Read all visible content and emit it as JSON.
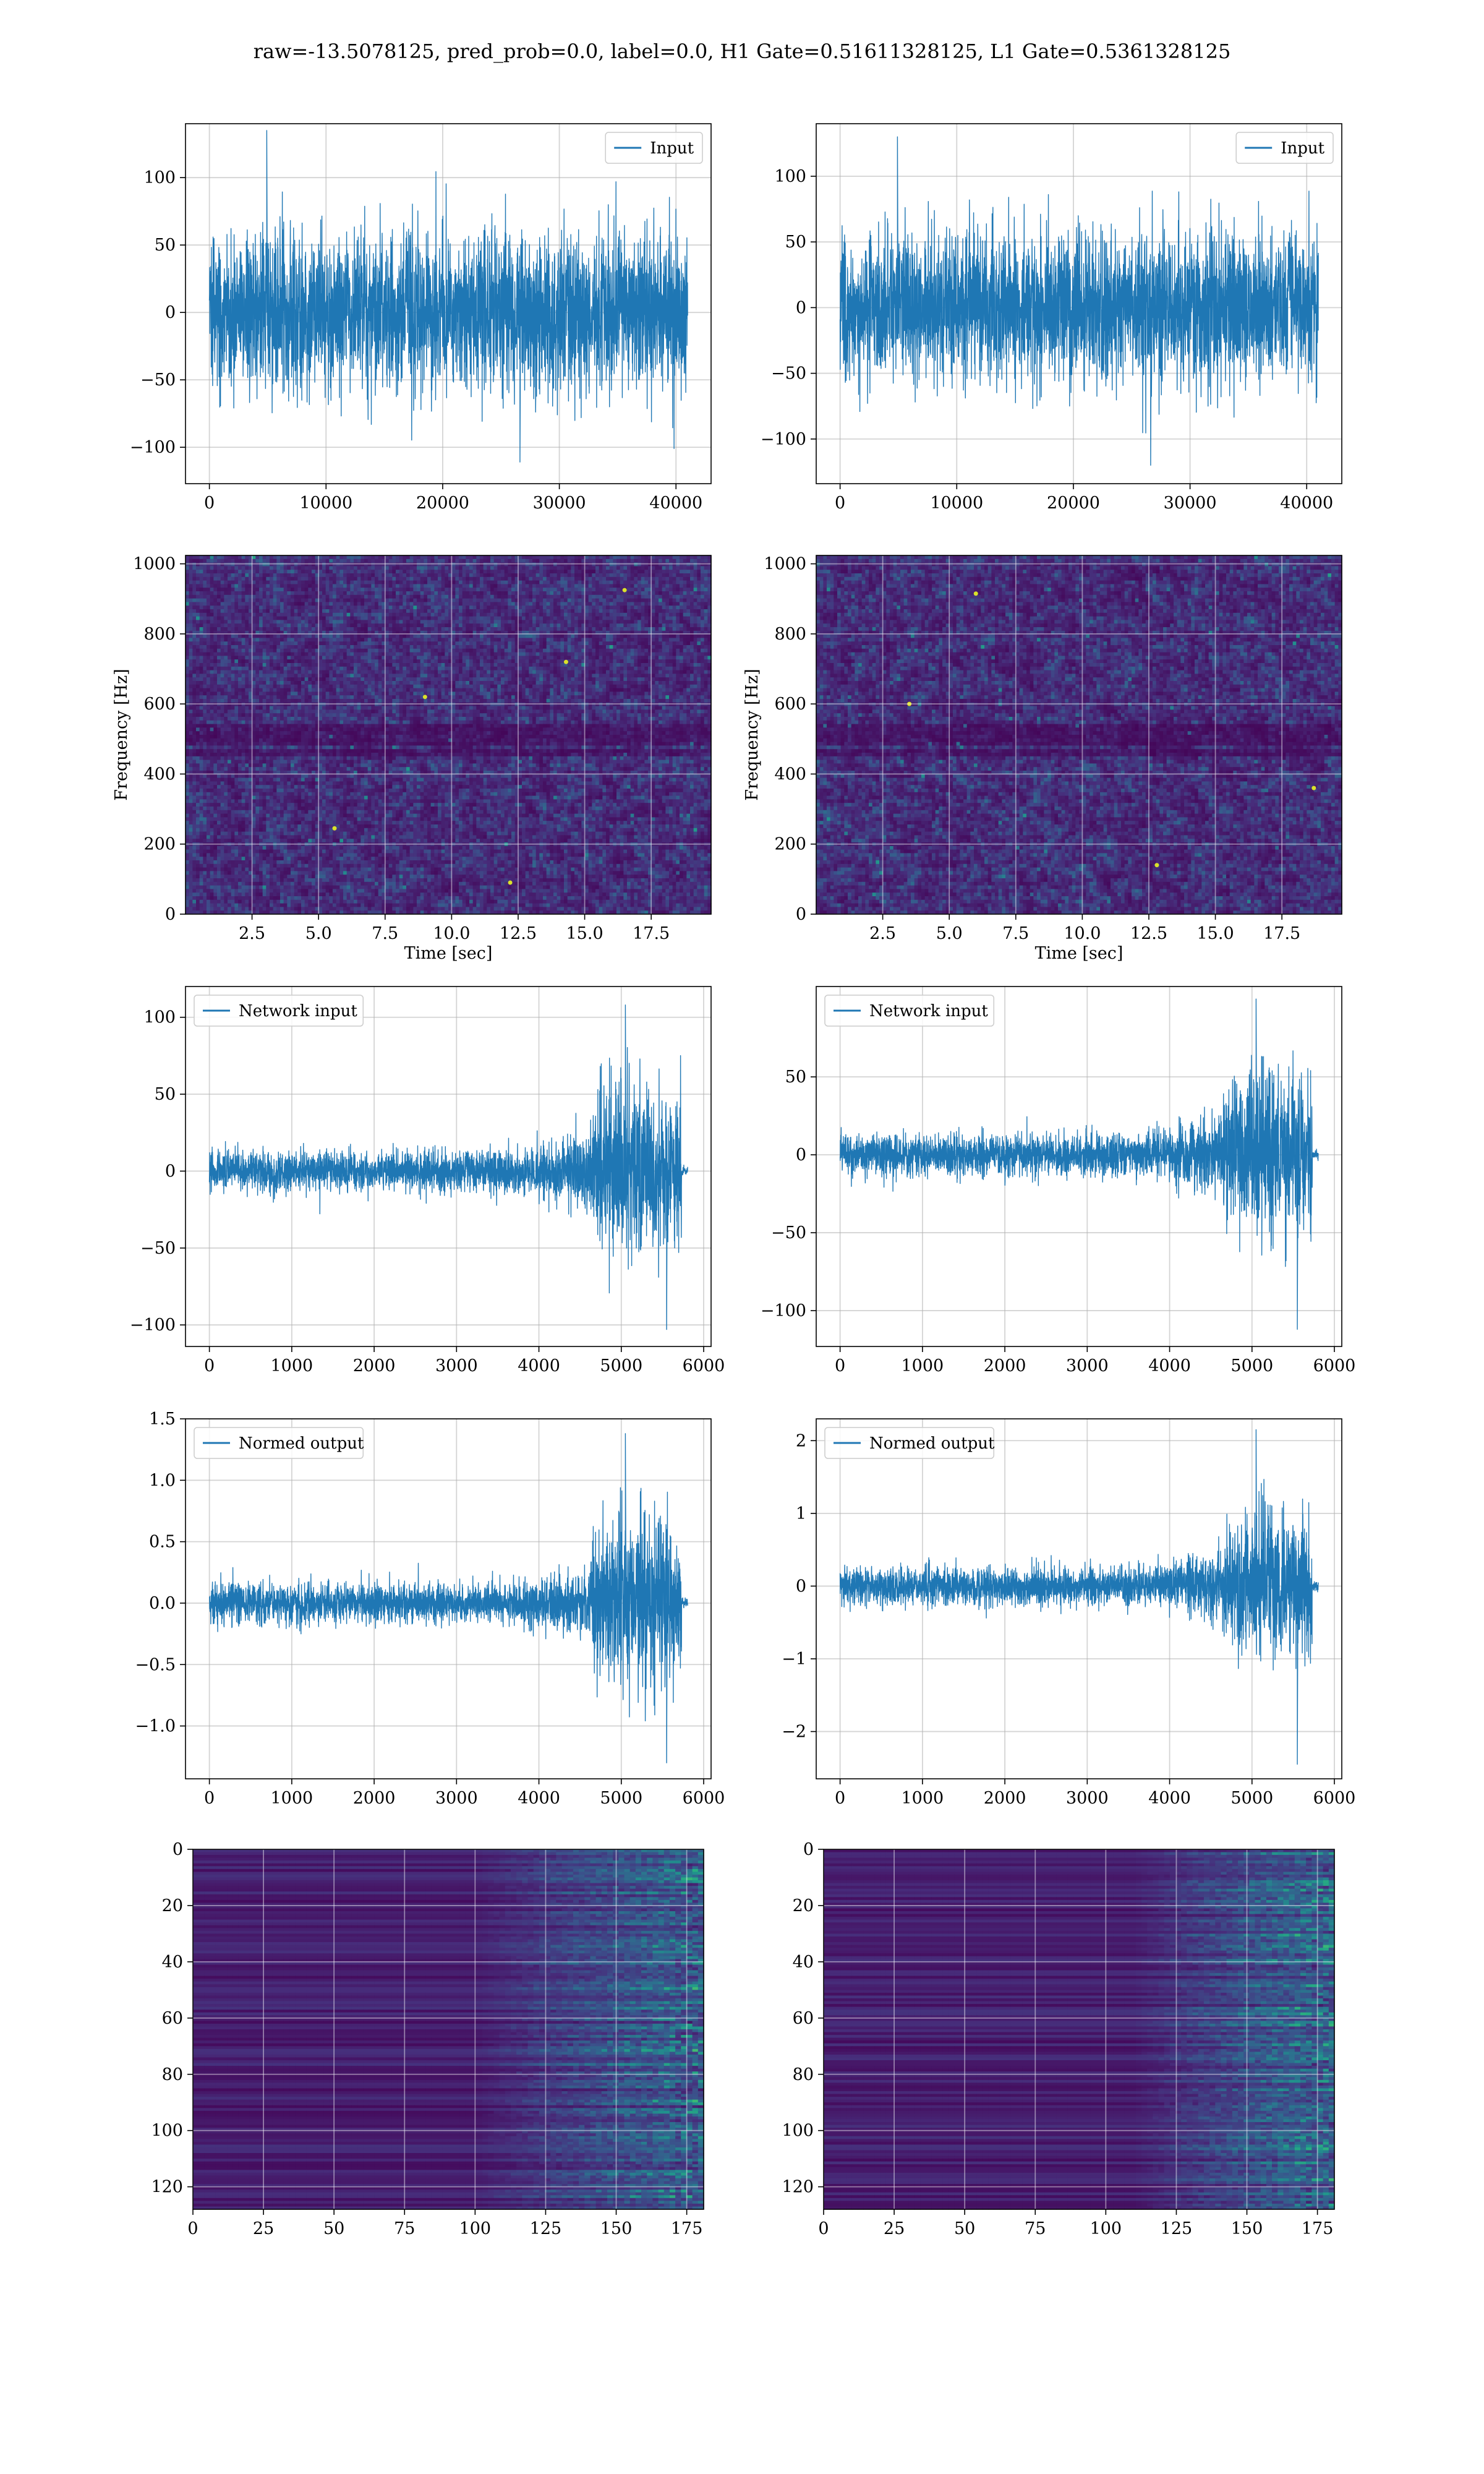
{
  "figure": {
    "title": "raw=-13.5078125, pred_prob=0.0, label=0.0, H1 Gate=0.51611328125, L1 Gate=0.5361328125"
  },
  "colors": {
    "line": "#1f77b4",
    "grid": "#b0b0b0",
    "viridis_low": "#440154",
    "viridis_mid": "#21918c",
    "viridis_high": "#fde725"
  },
  "chart_data": [
    {
      "id": "r1c1",
      "type": "line",
      "legend": "Input",
      "legend_loc": "upper right",
      "x_range": [
        0,
        40960
      ],
      "xlim": [
        -2048,
        43008
      ],
      "ylim": [
        -127,
        140
      ],
      "xticks": [
        0,
        10000,
        20000,
        30000,
        40000
      ],
      "yticks": [
        -100,
        -50,
        0,
        50,
        100
      ],
      "envelope": {
        "type": "stationary",
        "std": 28,
        "peak_max": 135,
        "peak_min": -111
      },
      "xlabel": "",
      "ylabel": "",
      "grid": true
    },
    {
      "id": "r1c2",
      "type": "line",
      "legend": "Input",
      "legend_loc": "upper right",
      "x_range": [
        0,
        40960
      ],
      "xlim": [
        -2048,
        43008
      ],
      "ylim": [
        -134,
        140
      ],
      "xticks": [
        0,
        10000,
        20000,
        30000,
        40000
      ],
      "yticks": [
        -100,
        -50,
        0,
        50,
        100
      ],
      "envelope": {
        "type": "stationary",
        "std": 28,
        "peak_max": 130,
        "peak_min": -120
      },
      "xlabel": "",
      "ylabel": "",
      "grid": true
    },
    {
      "id": "r2c1",
      "type": "heatmap",
      "colormap": "viridis",
      "xlim": [
        0,
        19.75
      ],
      "ylim": [
        0,
        1024
      ],
      "xticks": [
        2.5,
        5.0,
        7.5,
        10.0,
        12.5,
        15.0,
        17.5
      ],
      "yticks": [
        0,
        200,
        400,
        600,
        800,
        1000
      ],
      "xtick_labels": [
        "2.5",
        "5.0",
        "7.5",
        "10.0",
        "12.5",
        "15.0",
        "17.5"
      ],
      "xlabel": "Time [sec]",
      "ylabel": "Frequency [Hz]",
      "grid": true,
      "content": "broadband noise spectrogram with dark bands near 500 Hz",
      "hotspots": [
        [
          5.6,
          245
        ],
        [
          12.2,
          90
        ],
        [
          14.3,
          720
        ],
        [
          16.5,
          925
        ],
        [
          9.0,
          620
        ]
      ]
    },
    {
      "id": "r2c2",
      "type": "heatmap",
      "colormap": "viridis",
      "xlim": [
        0,
        19.75
      ],
      "ylim": [
        0,
        1024
      ],
      "xticks": [
        2.5,
        5.0,
        7.5,
        10.0,
        12.5,
        15.0,
        17.5
      ],
      "yticks": [
        0,
        200,
        400,
        600,
        800,
        1000
      ],
      "xtick_labels": [
        "2.5",
        "5.0",
        "7.5",
        "10.0",
        "12.5",
        "15.0",
        "17.5"
      ],
      "xlabel": "Time [sec]",
      "ylabel": "Frequency [Hz]",
      "grid": true,
      "content": "broadband noise spectrogram with dark bands near 500 Hz",
      "hotspots": [
        [
          12.8,
          140
        ],
        [
          6.0,
          915
        ],
        [
          18.7,
          360
        ],
        [
          3.5,
          600
        ]
      ]
    },
    {
      "id": "r3c1",
      "type": "line",
      "legend": "Network input",
      "legend_loc": "upper left",
      "x_range": [
        0,
        5800
      ],
      "xlim": [
        -290,
        6090
      ],
      "ylim": [
        -114,
        120
      ],
      "xticks": [
        0,
        1000,
        2000,
        3000,
        4000,
        5000,
        6000
      ],
      "yticks": [
        -100,
        -50,
        0,
        50,
        100
      ],
      "envelope": {
        "type": "chirp",
        "base_std": 6.5,
        "burst_start": 4650,
        "burst_end": 5730,
        "burst_std": 28,
        "tail_end": 5800,
        "peak_max": 108,
        "peak_min": -103
      },
      "xlabel": "",
      "ylabel": "",
      "grid": true
    },
    {
      "id": "r3c2",
      "type": "line",
      "legend": "Network input",
      "legend_loc": "upper left",
      "x_range": [
        0,
        5800
      ],
      "xlim": [
        -290,
        6090
      ],
      "ylim": [
        -123,
        108
      ],
      "xticks": [
        0,
        1000,
        2000,
        3000,
        4000,
        5000,
        6000
      ],
      "yticks": [
        -100,
        -50,
        0,
        50
      ],
      "envelope": {
        "type": "chirp",
        "base_std": 6.5,
        "burst_start": 4650,
        "burst_end": 5730,
        "burst_std": 26,
        "tail_end": 5800,
        "peak_max": 100,
        "peak_min": -112
      },
      "xlabel": "",
      "ylabel": "",
      "grid": true
    },
    {
      "id": "r4c1",
      "type": "line",
      "legend": "Normed output",
      "legend_loc": "upper left",
      "x_range": [
        0,
        5800
      ],
      "xlim": [
        -290,
        6090
      ],
      "ylim": [
        -1.43,
        1.5
      ],
      "xticks": [
        0,
        1000,
        2000,
        3000,
        4000,
        5000,
        6000
      ],
      "yticks": [
        -1.0,
        -0.5,
        0.0,
        0.5,
        1.0,
        1.5
      ],
      "ytick_labels": [
        "−1.0",
        "−0.5",
        "0.0",
        "0.5",
        "1.0",
        "1.5"
      ],
      "envelope": {
        "type": "chirp",
        "base_std": 0.08,
        "burst_start": 4650,
        "burst_end": 5730,
        "burst_std": 0.35,
        "tail_end": 5800,
        "peak_max": 1.38,
        "peak_min": -1.3
      },
      "xlabel": "",
      "ylabel": "",
      "grid": true
    },
    {
      "id": "r4c2",
      "type": "line",
      "legend": "Normed output",
      "legend_loc": "upper left",
      "x_range": [
        0,
        5800
      ],
      "xlim": [
        -290,
        6090
      ],
      "ylim": [
        -2.65,
        2.3
      ],
      "xticks": [
        0,
        1000,
        2000,
        3000,
        4000,
        5000,
        6000
      ],
      "yticks": [
        -2,
        -1,
        0,
        1,
        2
      ],
      "envelope": {
        "type": "chirp",
        "base_std": 0.13,
        "burst_start": 4650,
        "burst_end": 5730,
        "burst_std": 0.52,
        "tail_end": 5800,
        "peak_max": 2.15,
        "peak_min": -2.45
      },
      "xlabel": "",
      "ylabel": "",
      "grid": true
    },
    {
      "id": "r5c1",
      "type": "heatmap",
      "colormap": "viridis",
      "xlim": [
        0,
        181
      ],
      "ylim": [
        128,
        0
      ],
      "xticks": [
        0,
        25,
        50,
        75,
        100,
        125,
        150,
        175
      ],
      "yticks": [
        0,
        20,
        40,
        60,
        80,
        100,
        120
      ],
      "xlabel": "",
      "ylabel": "",
      "grid": true,
      "content": "128-channel activation map, dark for t<100, brightening toward t=180",
      "onset": 100
    },
    {
      "id": "r5c2",
      "type": "heatmap",
      "colormap": "viridis",
      "xlim": [
        0,
        181
      ],
      "ylim": [
        128,
        0
      ],
      "xticks": [
        0,
        25,
        50,
        75,
        100,
        125,
        150,
        175
      ],
      "yticks": [
        0,
        20,
        40,
        60,
        80,
        100,
        120
      ],
      "xlabel": "",
      "ylabel": "",
      "grid": true,
      "content": "128-channel activation map, dark for t<110, brightening toward t=180",
      "onset": 110
    }
  ]
}
